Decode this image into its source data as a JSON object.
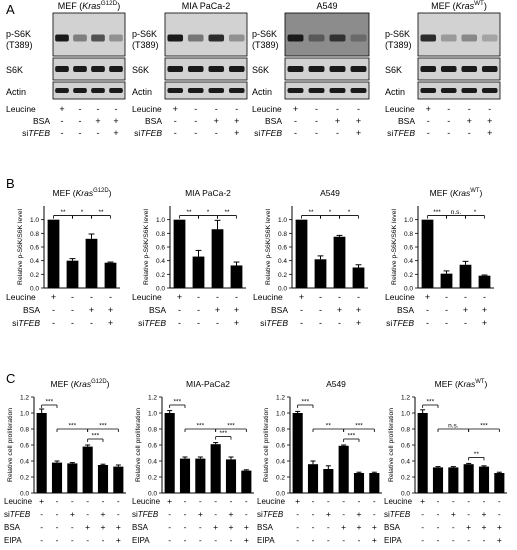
{
  "panel_letters": [
    "A",
    "B",
    "C"
  ],
  "cells": [
    {
      "title": "MEF (Kras",
      "sup": "G12D",
      "close": ")"
    },
    {
      "title": "MIA PaCa-2",
      "sup": "",
      "close": ""
    },
    {
      "title": "A549",
      "sup": "",
      "close": ""
    },
    {
      "title": "MEF (Kras",
      "sup": "WT",
      "close": ")"
    }
  ],
  "panel_c_titles": [
    {
      "title": "MEF (Kras",
      "sup": "G12D",
      "close": ")"
    },
    {
      "title": "MIA-PaCa2",
      "sup": "",
      "close": ""
    },
    {
      "title": "A549",
      "sup": "",
      "close": ""
    },
    {
      "title": "MEF (Kras",
      "sup": "WT",
      "close": ")"
    }
  ],
  "blot_labels": {
    "ps6k_1": "p-S6K",
    "ps6k_2": "(T389)",
    "s6k": "S6K",
    "actin": "Actin"
  },
  "treatment_labels": {
    "leucine": "Leucine",
    "bsa": "BSA",
    "si_prefix": "si",
    "si_gene": "TFEB",
    "eipa": "EIPA"
  },
  "treatments_ab": [
    [
      "+",
      "-",
      "-",
      "-"
    ],
    [
      "-",
      "-",
      "+",
      "+"
    ],
    [
      "-",
      "-",
      "-",
      "+"
    ]
  ],
  "treatments_c": [
    [
      "+",
      "-",
      "-",
      "-",
      "-",
      "-"
    ],
    [
      "-",
      "-",
      "+",
      "-",
      "+",
      "-"
    ],
    [
      "-",
      "-",
      "-",
      "+",
      "+",
      "+"
    ],
    [
      "-",
      "-",
      "-",
      "-",
      "-",
      "+"
    ]
  ],
  "chart_data": [
    {
      "type": "bar",
      "panel": "B",
      "title": "MEF (KrasG12D)",
      "ylabel": "Relative p-S6K/S6K level",
      "ylim": [
        0,
        1.2
      ],
      "yticks": [
        "0.0",
        "0.2",
        "0.4",
        "0.6",
        "0.8",
        "1.0"
      ],
      "values": [
        1.0,
        0.4,
        0.72,
        0.37
      ],
      "errors": [
        0,
        0.03,
        0.07,
        0.01
      ],
      "sig": [
        {
          "from": 0,
          "to": 1,
          "label": "**"
        },
        {
          "from": 1,
          "to": 2,
          "label": "*"
        },
        {
          "from": 2,
          "to": 3,
          "label": "**"
        }
      ]
    },
    {
      "type": "bar",
      "panel": "B",
      "title": "MIA PaCa-2",
      "ylabel": "Relative p-S6K/S6K level",
      "ylim": [
        0,
        1.2
      ],
      "yticks": [
        "0.0",
        "0.2",
        "0.4",
        "0.6",
        "0.8",
        "1.0"
      ],
      "values": [
        1.0,
        0.46,
        0.86,
        0.33
      ],
      "errors": [
        0,
        0.09,
        0.13,
        0.05
      ],
      "sig": [
        {
          "from": 0,
          "to": 1,
          "label": "**"
        },
        {
          "from": 1,
          "to": 2,
          "label": "*"
        },
        {
          "from": 2,
          "to": 3,
          "label": "**"
        }
      ]
    },
    {
      "type": "bar",
      "panel": "B",
      "title": "A549",
      "ylabel": "Relative p-S6K/S6K level",
      "ylim": [
        0,
        1.2
      ],
      "yticks": [
        "0.0",
        "0.2",
        "0.4",
        "0.6",
        "0.8",
        "1.0"
      ],
      "values": [
        1.0,
        0.42,
        0.75,
        0.3
      ],
      "errors": [
        0,
        0.05,
        0.02,
        0.04
      ],
      "sig": [
        {
          "from": 0,
          "to": 1,
          "label": "**"
        },
        {
          "from": 1,
          "to": 2,
          "label": "*"
        },
        {
          "from": 2,
          "to": 3,
          "label": "*"
        }
      ]
    },
    {
      "type": "bar",
      "panel": "B",
      "title": "MEF (KrasWT)",
      "ylabel": "Relative p-S6K/S6K level",
      "ylim": [
        0,
        1.2
      ],
      "yticks": [
        "0.0",
        "0.2",
        "0.4",
        "0.6",
        "0.8",
        "1.0"
      ],
      "values": [
        1.0,
        0.21,
        0.34,
        0.18
      ],
      "errors": [
        0,
        0.04,
        0.05,
        0.01
      ],
      "sig": [
        {
          "from": 0,
          "to": 1,
          "label": "***"
        },
        {
          "from": 1,
          "to": 2,
          "label": "n.s."
        },
        {
          "from": 2,
          "to": 3,
          "label": "*"
        }
      ]
    },
    {
      "type": "bar",
      "panel": "C",
      "title": "MEF (KrasG12D)",
      "ylabel": "Relative cell proliferation",
      "ylim": [
        0,
        1.2
      ],
      "yticks": [
        "0.0",
        "0.2",
        "0.4",
        "0.6",
        "0.8",
        "1.0",
        "1.2"
      ],
      "values": [
        1.0,
        0.38,
        0.37,
        0.58,
        0.35,
        0.33
      ],
      "errors": [
        0.05,
        0.02,
        0.01,
        0.02,
        0.01,
        0.02
      ],
      "sig": [
        {
          "from": 0,
          "to": 1,
          "label": "***"
        },
        {
          "from": 1,
          "to": 3,
          "label": "***"
        },
        {
          "from": 3,
          "to": 5,
          "label": "***"
        },
        {
          "from": 3,
          "to": 4,
          "label": "***"
        }
      ]
    },
    {
      "type": "bar",
      "panel": "C",
      "title": "MIA-PaCa2",
      "ylabel": "Relative cell proliferation",
      "ylim": [
        0,
        1.2
      ],
      "yticks": [
        "0.0",
        "0.2",
        "0.4",
        "0.6",
        "0.8",
        "1.0",
        "1.2"
      ],
      "values": [
        1.0,
        0.43,
        0.43,
        0.61,
        0.42,
        0.28
      ],
      "errors": [
        0.03,
        0.02,
        0.02,
        0.02,
        0.03,
        0.01
      ],
      "sig": [
        {
          "from": 0,
          "to": 1,
          "label": "***"
        },
        {
          "from": 1,
          "to": 3,
          "label": "***"
        },
        {
          "from": 3,
          "to": 5,
          "label": "***"
        },
        {
          "from": 3,
          "to": 4,
          "label": "***"
        }
      ]
    },
    {
      "type": "bar",
      "panel": "C",
      "title": "A549",
      "ylabel": "Relative cell proliferation",
      "ylim": [
        0,
        1.2
      ],
      "yticks": [
        "0.0",
        "0.2",
        "0.4",
        "0.6",
        "0.8",
        "1.0",
        "1.2"
      ],
      "values": [
        1.0,
        0.36,
        0.3,
        0.59,
        0.25,
        0.25
      ],
      "errors": [
        0.02,
        0.04,
        0.04,
        0.01,
        0.01,
        0.01
      ],
      "sig": [
        {
          "from": 0,
          "to": 1,
          "label": "***"
        },
        {
          "from": 1,
          "to": 3,
          "label": "**"
        },
        {
          "from": 3,
          "to": 5,
          "label": "***"
        },
        {
          "from": 3,
          "to": 4,
          "label": "***"
        }
      ]
    },
    {
      "type": "bar",
      "panel": "C",
      "title": "MEF (KrasWT)",
      "ylabel": "Relative cell proliferation",
      "ylim": [
        0,
        1.2
      ],
      "yticks": [
        "0.0",
        "0.2",
        "0.4",
        "0.6",
        "0.8",
        "1.0",
        "1.2"
      ],
      "values": [
        1.0,
        0.32,
        0.32,
        0.36,
        0.33,
        0.25
      ],
      "errors": [
        0.04,
        0.01,
        0.01,
        0.01,
        0.01,
        0.01
      ],
      "sig": [
        {
          "from": 0,
          "to": 1,
          "label": "***"
        },
        {
          "from": 1,
          "to": 3,
          "label": "n.s."
        },
        {
          "from": 3,
          "to": 5,
          "label": "***"
        },
        {
          "from": 3,
          "to": 4,
          "label": "**"
        }
      ]
    }
  ],
  "colors": {
    "bar": "#000000",
    "blot_bg": "#d2d2d2",
    "blot_dark_bg": "#8c8c8c",
    "band": "#1a1a1a"
  }
}
